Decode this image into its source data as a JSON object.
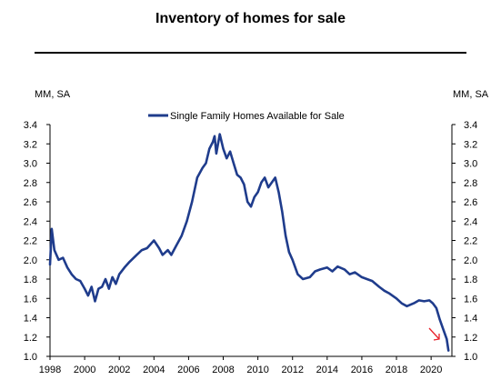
{
  "chart_data": {
    "type": "line",
    "title": "Inventory of homes for sale",
    "y_unit_left": "MM, SA",
    "y_unit_right": "MM, SA",
    "xlim": [
      1998,
      2021.2
    ],
    "ylim": [
      1.0,
      3.4
    ],
    "x_ticks": [
      1998,
      2000,
      2002,
      2004,
      2006,
      2008,
      2010,
      2012,
      2014,
      2016,
      2018,
      2020
    ],
    "y_ticks": [
      "1.0",
      "1.2",
      "1.4",
      "1.6",
      "1.8",
      "2.0",
      "2.2",
      "2.4",
      "2.6",
      "2.8",
      "3.0",
      "3.2",
      "3.4"
    ],
    "legend_position": "top-center",
    "grid": false,
    "series": [
      {
        "name": "Single Family Homes Available for Sale",
        "color": "#1f3c8c",
        "x": [
          1998.0,
          1998.1,
          1998.25,
          1998.5,
          1998.75,
          1999.0,
          1999.25,
          1999.5,
          1999.75,
          2000.0,
          2000.2,
          2000.4,
          2000.6,
          2000.8,
          2001.0,
          2001.2,
          2001.4,
          2001.6,
          2001.8,
          2002.0,
          2002.3,
          2002.6,
          2003.0,
          2003.3,
          2003.6,
          2004.0,
          2004.3,
          2004.5,
          2004.8,
          2005.0,
          2005.3,
          2005.6,
          2005.9,
          2006.2,
          2006.5,
          2006.8,
          2007.0,
          2007.2,
          2007.4,
          2007.5,
          2007.6,
          2007.7,
          2007.8,
          2008.0,
          2008.2,
          2008.4,
          2008.6,
          2008.8,
          2009.0,
          2009.2,
          2009.4,
          2009.6,
          2009.8,
          2010.0,
          2010.2,
          2010.4,
          2010.6,
          2010.8,
          2011.0,
          2011.2,
          2011.4,
          2011.6,
          2011.8,
          2012.0,
          2012.3,
          2012.6,
          2013.0,
          2013.3,
          2013.6,
          2014.0,
          2014.3,
          2014.6,
          2015.0,
          2015.3,
          2015.6,
          2016.0,
          2016.3,
          2016.6,
          2017.0,
          2017.3,
          2017.6,
          2018.0,
          2018.3,
          2018.6,
          2019.0,
          2019.3,
          2019.6,
          2019.9,
          2020.1,
          2020.3,
          2020.5,
          2020.7,
          2020.9,
          2021.0
        ],
        "y": [
          1.95,
          2.32,
          2.1,
          2.0,
          2.02,
          1.92,
          1.85,
          1.8,
          1.78,
          1.7,
          1.63,
          1.72,
          1.57,
          1.7,
          1.72,
          1.8,
          1.7,
          1.82,
          1.75,
          1.85,
          1.92,
          1.98,
          2.05,
          2.1,
          2.12,
          2.2,
          2.12,
          2.05,
          2.1,
          2.05,
          2.15,
          2.25,
          2.4,
          2.6,
          2.85,
          2.95,
          3.0,
          3.15,
          3.22,
          3.28,
          3.1,
          3.2,
          3.3,
          3.15,
          3.05,
          3.12,
          3.0,
          2.88,
          2.85,
          2.78,
          2.6,
          2.55,
          2.65,
          2.7,
          2.8,
          2.85,
          2.75,
          2.8,
          2.85,
          2.7,
          2.5,
          2.25,
          2.08,
          2.0,
          1.85,
          1.8,
          1.82,
          1.88,
          1.9,
          1.92,
          1.88,
          1.93,
          1.9,
          1.85,
          1.87,
          1.82,
          1.8,
          1.78,
          1.72,
          1.68,
          1.65,
          1.6,
          1.55,
          1.52,
          1.55,
          1.58,
          1.57,
          1.58,
          1.55,
          1.5,
          1.38,
          1.28,
          1.18,
          1.06
        ]
      }
    ]
  }
}
